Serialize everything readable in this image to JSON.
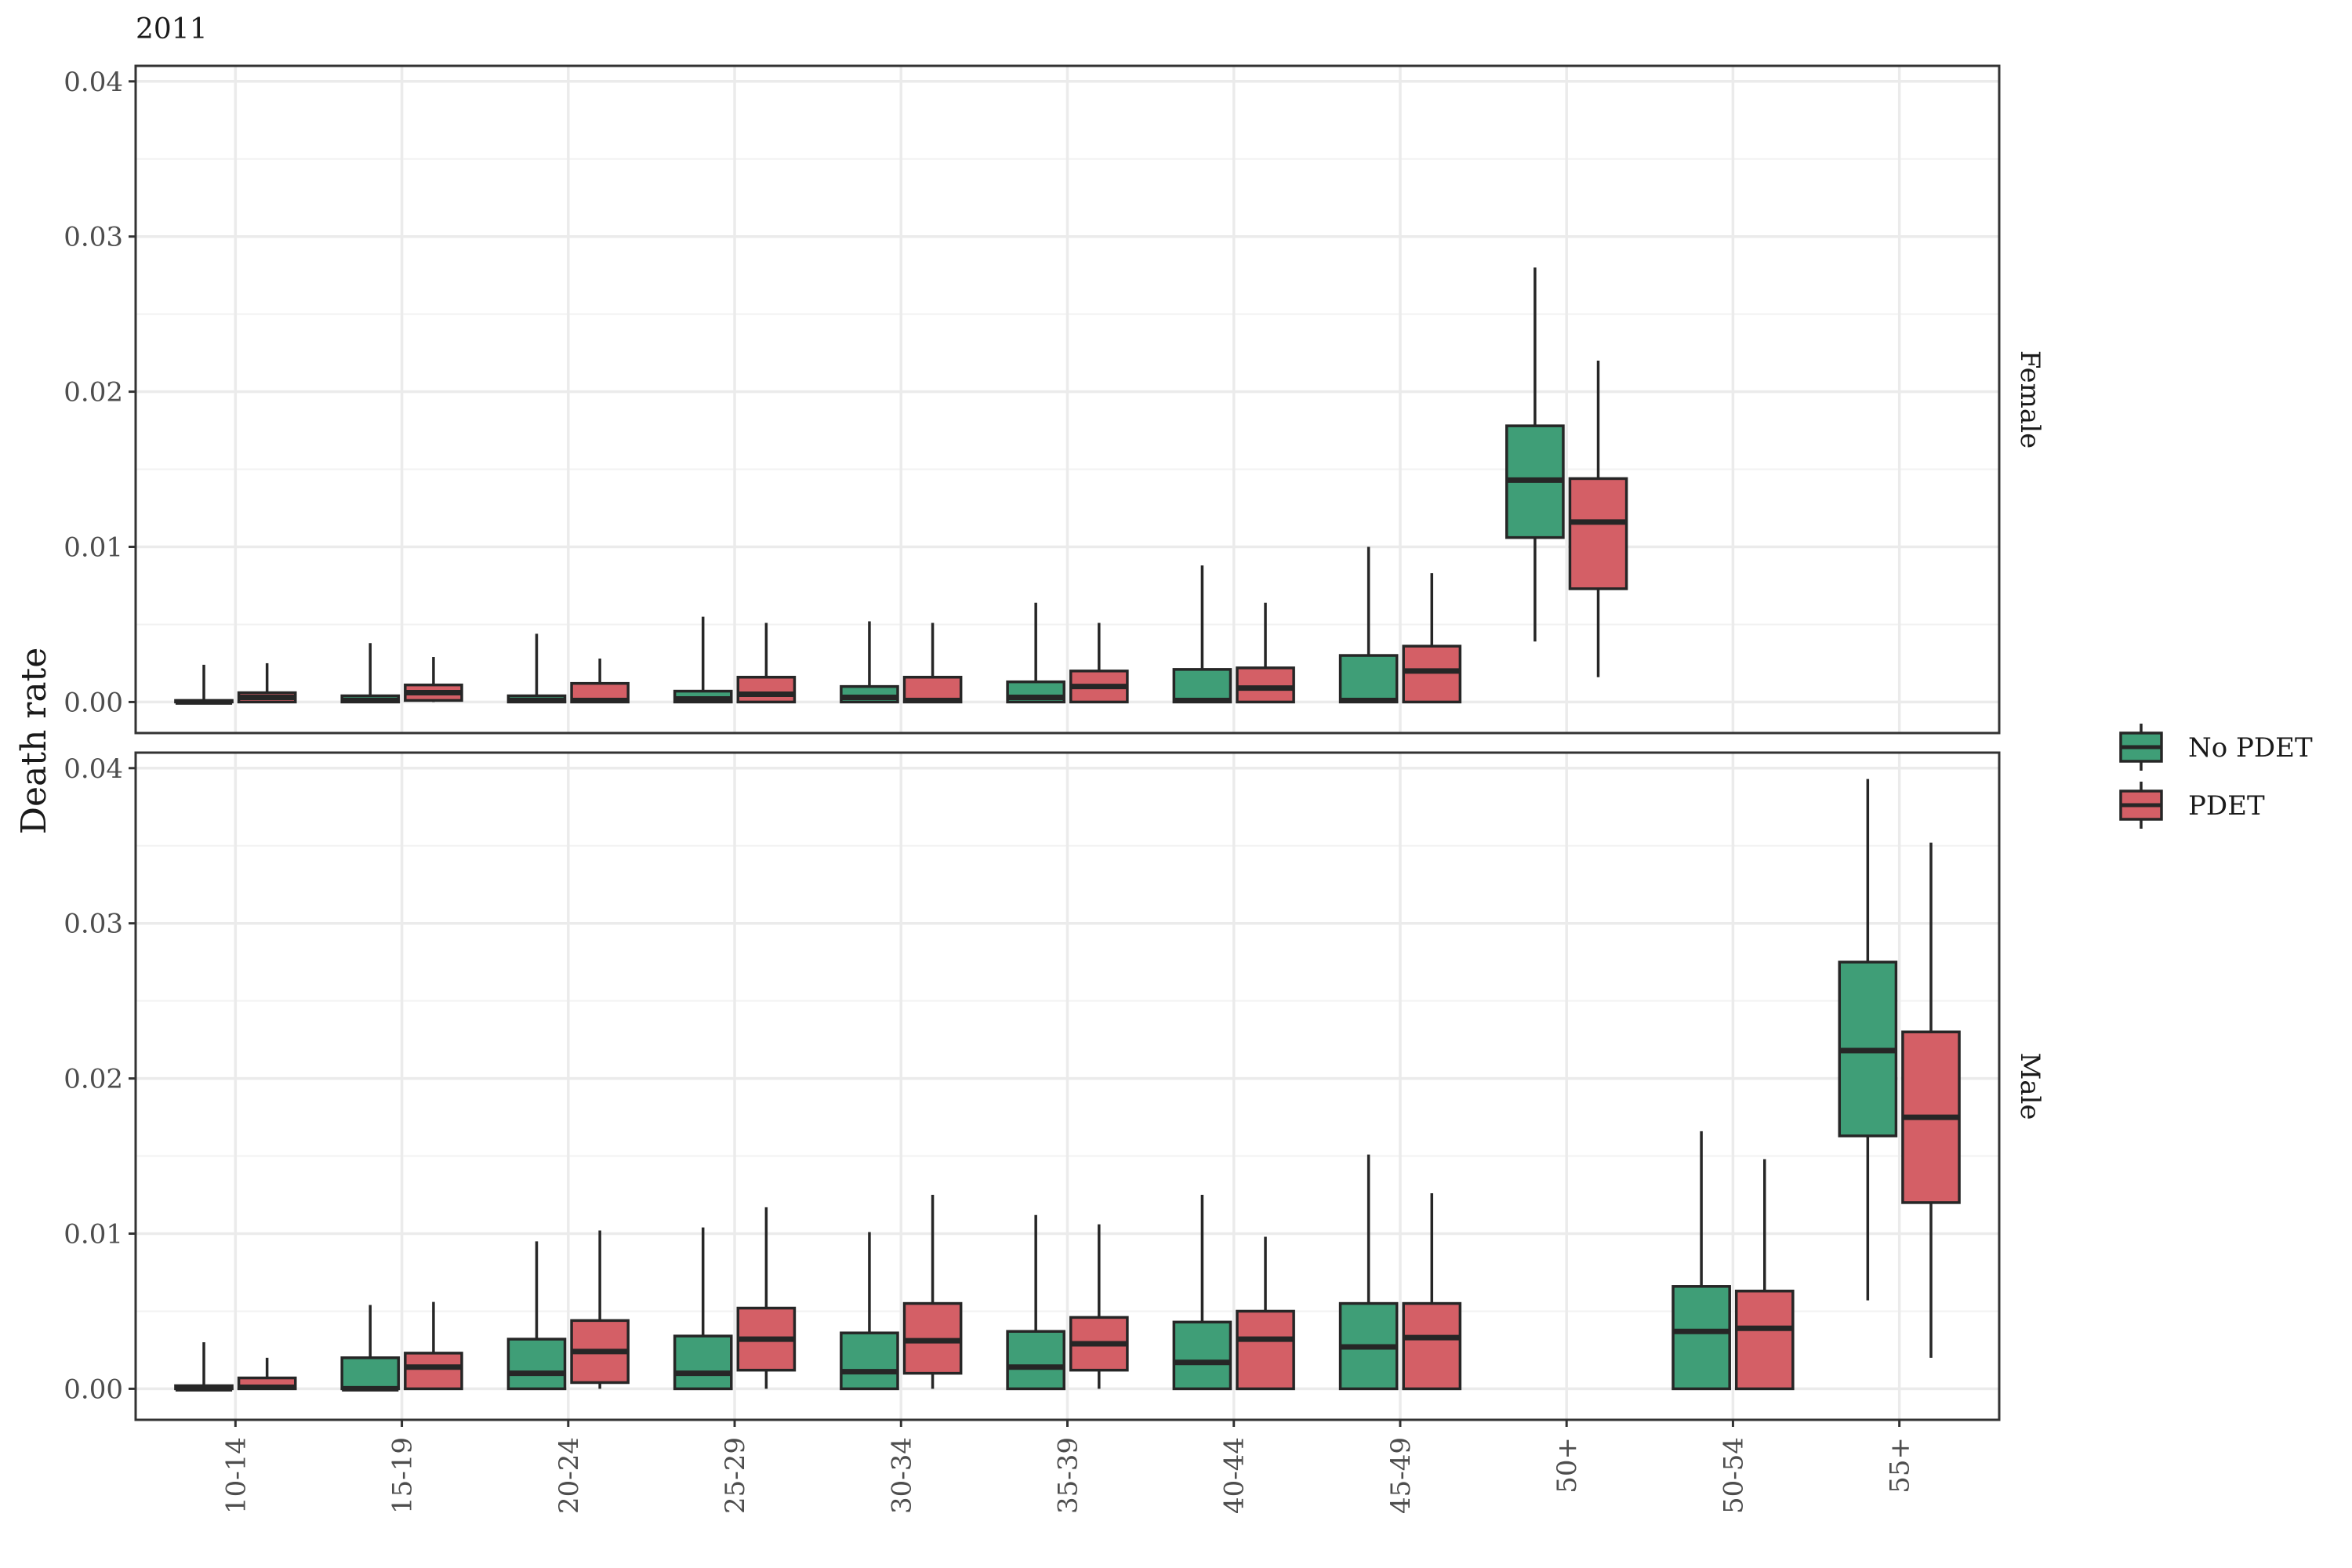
{
  "chart_data": {
    "type": "boxplot",
    "title": "2011",
    "ylabel": "Death rate",
    "xlabel": "",
    "ylim": [
      -0.002,
      0.041
    ],
    "yticks": [
      0.0,
      0.01,
      0.02,
      0.03,
      0.04
    ],
    "ytick_labels": [
      "0.00",
      "0.01",
      "0.02",
      "0.03",
      "0.04"
    ],
    "categories": [
      "10-14",
      "15-19",
      "20-24",
      "25-29",
      "30-34",
      "35-39",
      "40-44",
      "45-49",
      "50+",
      "50-54",
      "55+"
    ],
    "grid": true,
    "legend_position": "right",
    "series": [
      {
        "name": "No PDET",
        "color": "#3f9e77"
      },
      {
        "name": "PDET",
        "color": "#d45f66"
      }
    ],
    "panels": [
      {
        "label": "Female",
        "boxes": {
          "No PDET": [
            {
              "category": "10-14",
              "min": 0.0,
              "q1": 0.0,
              "median": 0.0,
              "q3": 0.0001,
              "max": 0.0024
            },
            {
              "category": "15-19",
              "min": 0.0,
              "q1": 0.0,
              "median": 0.0001,
              "q3": 0.0004,
              "max": 0.0038
            },
            {
              "category": "20-24",
              "min": 0.0,
              "q1": 0.0,
              "median": 0.0001,
              "q3": 0.0004,
              "max": 0.0044
            },
            {
              "category": "25-29",
              "min": 0.0,
              "q1": 0.0,
              "median": 0.0002,
              "q3": 0.0007,
              "max": 0.0055
            },
            {
              "category": "30-34",
              "min": 0.0,
              "q1": 0.0,
              "median": 0.0003,
              "q3": 0.001,
              "max": 0.0052
            },
            {
              "category": "35-39",
              "min": 0.0,
              "q1": 0.0,
              "median": 0.0003,
              "q3": 0.0013,
              "max": 0.0064
            },
            {
              "category": "40-44",
              "min": 0.0,
              "q1": 0.0,
              "median": 0.0001,
              "q3": 0.0021,
              "max": 0.0088
            },
            {
              "category": "45-49",
              "min": 0.0,
              "q1": 0.0,
              "median": 0.0001,
              "q3": 0.003,
              "max": 0.01
            },
            {
              "category": "50+",
              "min": 0.0039,
              "q1": 0.0106,
              "median": 0.0143,
              "q3": 0.0178,
              "max": 0.028
            }
          ],
          "PDET": [
            {
              "category": "10-14",
              "min": 0.0,
              "q1": 0.0,
              "median": 0.0003,
              "q3": 0.0006,
              "max": 0.0025
            },
            {
              "category": "15-19",
              "min": 0.0,
              "q1": 0.0001,
              "median": 0.0006,
              "q3": 0.0011,
              "max": 0.0029
            },
            {
              "category": "20-24",
              "min": 0.0,
              "q1": 0.0,
              "median": 0.0001,
              "q3": 0.0012,
              "max": 0.0028
            },
            {
              "category": "25-29",
              "min": 0.0,
              "q1": 0.0,
              "median": 0.0005,
              "q3": 0.0016,
              "max": 0.0051
            },
            {
              "category": "30-34",
              "min": 0.0,
              "q1": 0.0,
              "median": 0.0001,
              "q3": 0.0016,
              "max": 0.0051
            },
            {
              "category": "35-39",
              "min": 0.0,
              "q1": 0.0,
              "median": 0.001,
              "q3": 0.002,
              "max": 0.0051
            },
            {
              "category": "40-44",
              "min": 0.0,
              "q1": 0.0,
              "median": 0.0009,
              "q3": 0.0022,
              "max": 0.0064
            },
            {
              "category": "45-49",
              "min": 0.0,
              "q1": 0.0,
              "median": 0.002,
              "q3": 0.0036,
              "max": 0.0083
            },
            {
              "category": "50+",
              "min": 0.0016,
              "q1": 0.0073,
              "median": 0.0116,
              "q3": 0.0144,
              "max": 0.022
            }
          ]
        }
      },
      {
        "label": "Male",
        "boxes": {
          "No PDET": [
            {
              "category": "10-14",
              "min": 0.0,
              "q1": 0.0,
              "median": 0.0,
              "q3": 0.0002,
              "max": 0.003
            },
            {
              "category": "15-19",
              "min": 0.0,
              "q1": 0.0,
              "median": 0.0,
              "q3": 0.002,
              "max": 0.0054
            },
            {
              "category": "20-24",
              "min": 0.0,
              "q1": 0.0,
              "median": 0.001,
              "q3": 0.0032,
              "max": 0.0095
            },
            {
              "category": "25-29",
              "min": 0.0,
              "q1": 0.0,
              "median": 0.001,
              "q3": 0.0034,
              "max": 0.0104
            },
            {
              "category": "30-34",
              "min": 0.0,
              "q1": 0.0,
              "median": 0.0011,
              "q3": 0.0036,
              "max": 0.0101
            },
            {
              "category": "35-39",
              "min": 0.0,
              "q1": 0.0,
              "median": 0.0014,
              "q3": 0.0037,
              "max": 0.0112
            },
            {
              "category": "40-44",
              "min": 0.0,
              "q1": 0.0,
              "median": 0.0017,
              "q3": 0.0043,
              "max": 0.0125
            },
            {
              "category": "45-49",
              "min": 0.0,
              "q1": 0.0,
              "median": 0.0027,
              "q3": 0.0055,
              "max": 0.0151
            },
            {
              "category": "50-54",
              "min": 0.0,
              "q1": 0.0,
              "median": 0.0037,
              "q3": 0.0066,
              "max": 0.0166
            },
            {
              "category": "55+",
              "min": 0.0057,
              "q1": 0.0163,
              "median": 0.0218,
              "q3": 0.0275,
              "max": 0.0393
            }
          ],
          "PDET": [
            {
              "category": "10-14",
              "min": 0.0,
              "q1": 0.0,
              "median": 0.0001,
              "q3": 0.0007,
              "max": 0.002
            },
            {
              "category": "15-19",
              "min": 0.0,
              "q1": 0.0,
              "median": 0.0014,
              "q3": 0.0023,
              "max": 0.0056
            },
            {
              "category": "20-24",
              "min": 0.0,
              "q1": 0.0004,
              "median": 0.0024,
              "q3": 0.0044,
              "max": 0.0102
            },
            {
              "category": "25-29",
              "min": 0.0,
              "q1": 0.0012,
              "median": 0.0032,
              "q3": 0.0052,
              "max": 0.0117
            },
            {
              "category": "30-34",
              "min": 0.0,
              "q1": 0.001,
              "median": 0.0031,
              "q3": 0.0055,
              "max": 0.0125
            },
            {
              "category": "35-39",
              "min": 0.0,
              "q1": 0.0012,
              "median": 0.0029,
              "q3": 0.0046,
              "max": 0.0106
            },
            {
              "category": "40-44",
              "min": 0.0,
              "q1": 0.0,
              "median": 0.0032,
              "q3": 0.005,
              "max": 0.0098
            },
            {
              "category": "45-49",
              "min": 0.0,
              "q1": 0.0,
              "median": 0.0033,
              "q3": 0.0055,
              "max": 0.0126
            },
            {
              "category": "50-54",
              "min": 0.0,
              "q1": 0.0,
              "median": 0.0039,
              "q3": 0.0063,
              "max": 0.0148
            },
            {
              "category": "55+",
              "min": 0.002,
              "q1": 0.012,
              "median": 0.0175,
              "q3": 0.023,
              "max": 0.0352
            }
          ]
        }
      }
    ]
  }
}
